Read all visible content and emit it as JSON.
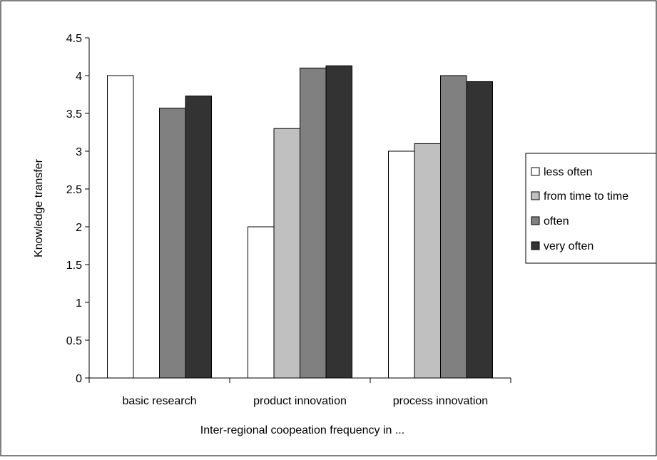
{
  "chart_data": {
    "type": "bar",
    "title": "",
    "xlabel": "Inter-regional coopeation frequency in ...",
    "ylabel": "Knowledge transfer",
    "categories": [
      "basic research",
      "product innovation",
      "process innovation"
    ],
    "series": [
      {
        "name": "less often",
        "values": [
          4.0,
          2.0,
          3.0
        ],
        "color": "#ffffff"
      },
      {
        "name": "from time to time",
        "values": [
          null,
          3.3,
          3.1
        ],
        "color": "#c0c0c0"
      },
      {
        "name": "often",
        "values": [
          3.57,
          4.1,
          4.0
        ],
        "color": "#808080"
      },
      {
        "name": "very often",
        "values": [
          3.73,
          4.13,
          3.92
        ],
        "color": "#333333"
      }
    ],
    "ylim": [
      0,
      4.5
    ],
    "yticks": [
      "0",
      "0.5",
      "1",
      "1.5",
      "2",
      "2.5",
      "3",
      "3.5",
      "4",
      "4.5"
    ],
    "grid": false,
    "legend_position": "right"
  }
}
